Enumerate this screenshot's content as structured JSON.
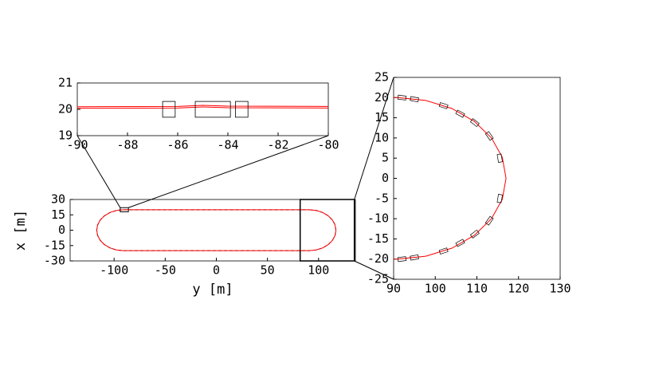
{
  "chart_data": [
    {
      "type": "line",
      "xlabel": "y [m]",
      "ylabel": "x [m]",
      "xlim": [
        -143,
        136
      ],
      "ylim": [
        -30,
        30
      ],
      "xticks": [
        -100,
        -50,
        0,
        50,
        100
      ],
      "yticks": [
        -30,
        -15,
        0,
        15,
        30
      ],
      "x": [
        91,
        97.7,
        104,
        109.4,
        113.5,
        116.1,
        117,
        116.1,
        113.5,
        109.4,
        104,
        97.7,
        91,
        -91,
        -97.7,
        -104,
        -109.4,
        -113.5,
        -116.1,
        -117,
        -116.1,
        -113.5,
        -109.4,
        -104,
        -97.7,
        -91,
        91
      ],
      "series": [
        {
          "color": "#000000",
          "dashed": true,
          "values": [
            20,
            19.3,
            17.3,
            14.1,
            10,
            5.2,
            0,
            -5.2,
            -10,
            -14.1,
            -17.3,
            -19.3,
            -20,
            -20,
            -19.3,
            -17.3,
            -14.1,
            -10,
            -5.2,
            0,
            5.2,
            10,
            14.1,
            17.3,
            19.3,
            20,
            20
          ]
        },
        {
          "color": "#ff0000",
          "dashed": false,
          "values": [
            20,
            19.3,
            17.3,
            14.1,
            10,
            5.2,
            0,
            -5.2,
            -10,
            -14.1,
            -17.3,
            -19.3,
            -20,
            -20,
            -19.3,
            -17.3,
            -14.1,
            -10,
            -5.2,
            0,
            5.2,
            10,
            14.1,
            17.3,
            19.3,
            20,
            20
          ]
        }
      ],
      "zoom_boxes": [
        [
          -94,
          -86,
          18,
          22
        ],
        [
          82,
          135,
          -30,
          30
        ]
      ]
    },
    {
      "type": "line",
      "xlim": [
        -90,
        -80
      ],
      "ylim": [
        19,
        21
      ],
      "xticks": [
        -90,
        -88,
        -86,
        -84,
        -82,
        -80
      ],
      "yticks": [
        19,
        20,
        21
      ],
      "x": [
        -90,
        -86,
        -85,
        -84,
        -80
      ],
      "series": [
        {
          "color": "#ff0000",
          "dashed": false,
          "values": [
            20.04,
            20.05,
            20.09,
            20.06,
            20.05
          ]
        },
        {
          "color": "#ff0000",
          "dashed": false,
          "values": [
            20.1,
            20.11,
            20.15,
            20.12,
            20.11
          ]
        }
      ],
      "boxes": [
        [
          -86.6,
          -86.1,
          19.7,
          20.3
        ],
        [
          -85.3,
          -83.9,
          19.7,
          20.3
        ],
        [
          -83.7,
          -83.2,
          19.7,
          20.3
        ]
      ]
    },
    {
      "type": "line",
      "xlim": [
        90,
        130
      ],
      "ylim": [
        -25,
        25
      ],
      "xticks": [
        90,
        100,
        110,
        120,
        130
      ],
      "yticks": [
        -25,
        -20,
        -15,
        -10,
        -5,
        0,
        5,
        10,
        15,
        20,
        25
      ],
      "x": [
        90,
        91,
        97.7,
        104,
        109.4,
        113.5,
        116.1,
        117,
        116.1,
        113.5,
        109.4,
        104,
        97.7,
        91,
        90
      ],
      "series": [
        {
          "color": "#ff0000",
          "dashed": false,
          "values": [
            20,
            20,
            19.3,
            17.3,
            14.1,
            10,
            5.2,
            0,
            -5.2,
            -10,
            -14.1,
            -17.3,
            -19.3,
            -20,
            -20
          ]
        }
      ],
      "vehicles": [
        [
          92,
          20
        ],
        [
          95,
          19.6
        ],
        [
          102,
          18
        ],
        [
          106,
          16
        ],
        [
          109.5,
          13.8
        ],
        [
          113,
          10.5
        ],
        [
          115.5,
          5
        ],
        [
          115.5,
          -5
        ],
        [
          113,
          -10.5
        ],
        [
          109.5,
          -13.8
        ],
        [
          106,
          -16
        ],
        [
          102,
          -18
        ],
        [
          95,
          -19.6
        ],
        [
          92,
          -20
        ]
      ]
    }
  ]
}
